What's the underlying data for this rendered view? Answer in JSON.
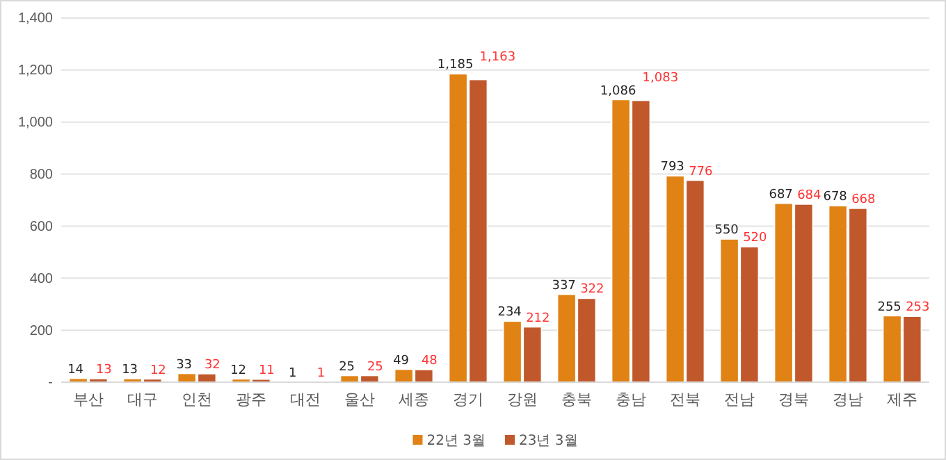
{
  "chart_data": {
    "type": "bar",
    "categories": [
      "부산",
      "대구",
      "인천",
      "광주",
      "대전",
      "울산",
      "세종",
      "경기",
      "강원",
      "충북",
      "충남",
      "전북",
      "전남",
      "경북",
      "경남",
      "제주"
    ],
    "series": [
      {
        "name": "22년 3월",
        "color": "#e08214",
        "values": [
          14,
          13,
          33,
          12,
          1,
          25,
          49,
          1185,
          234,
          337,
          1086,
          793,
          550,
          687,
          678,
          255
        ],
        "value_labels": [
          "14",
          "13",
          "33",
          "12",
          "1",
          "25",
          "49",
          "1,185",
          "234",
          "337",
          "1,086",
          "793",
          "550",
          "687",
          "678",
          "255"
        ]
      },
      {
        "name": "23년 3월",
        "color": "#c0582c",
        "values": [
          13,
          12,
          32,
          11,
          1,
          25,
          48,
          1163,
          212,
          322,
          1083,
          776,
          520,
          684,
          668,
          253
        ],
        "value_labels": [
          "13",
          "12",
          "32",
          "11",
          "1",
          "25",
          "48",
          "1,163",
          "212",
          "322",
          "1,083",
          "776",
          "520",
          "684",
          "668",
          "253"
        ]
      }
    ],
    "ylim": [
      0,
      1400
    ],
    "yticks": [
      {
        "value": 0,
        "label": "-"
      },
      {
        "value": 200,
        "label": "200"
      },
      {
        "value": 400,
        "label": "400"
      },
      {
        "value": 600,
        "label": "600"
      },
      {
        "value": 800,
        "label": "800"
      },
      {
        "value": 1000,
        "label": "1,000"
      },
      {
        "value": 1200,
        "label": "1,200"
      },
      {
        "value": 1400,
        "label": "1,400"
      }
    ],
    "grid": "y",
    "legend": "bottom"
  }
}
